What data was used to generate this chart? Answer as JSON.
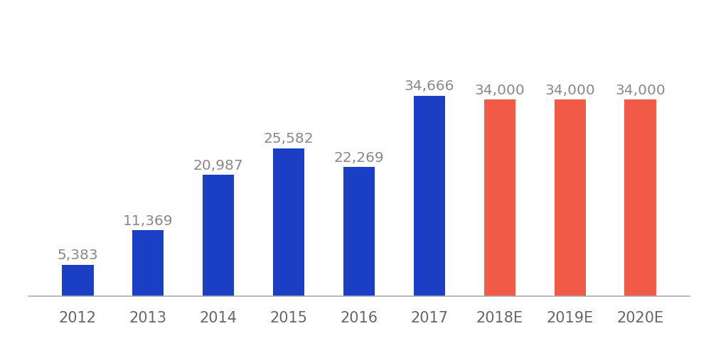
{
  "categories": [
    "2012",
    "2013",
    "2014",
    "2015",
    "2016",
    "2017",
    "2018E",
    "2019E",
    "2020E"
  ],
  "values": [
    5383,
    11369,
    20987,
    25582,
    22269,
    34666,
    34000,
    34000,
    34000
  ],
  "bar_colors": [
    "#1a3fc4",
    "#1a3fc4",
    "#1a3fc4",
    "#1a3fc4",
    "#1a3fc4",
    "#1a3fc4",
    "#f05a46",
    "#f05a46",
    "#f05a46"
  ],
  "labels": [
    "5,383",
    "11,369",
    "20,987",
    "25,582",
    "22,269",
    "34,666",
    "34,000",
    "34,000",
    "34,000"
  ],
  "label_color": "#888888",
  "label_fontsize": 14.5,
  "tick_fontsize": 15,
  "background_color": "#ffffff",
  "ylim": [
    0,
    44000
  ],
  "bar_width": 0.45,
  "xlim_left": -0.7,
  "xlim_right": 8.7
}
